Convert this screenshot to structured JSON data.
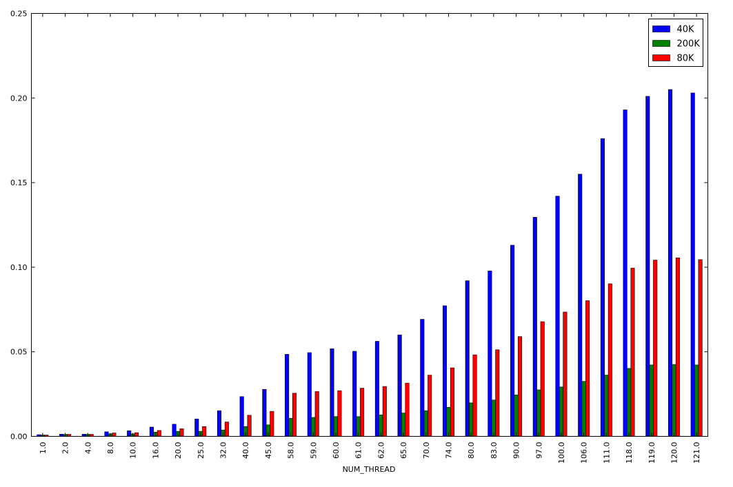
{
  "chart_data": {
    "type": "bar",
    "title": "",
    "xlabel": "NUM_THREAD",
    "ylabel": "",
    "ylim": [
      0,
      0.25
    ],
    "yticks": [
      "0.00",
      "0.05",
      "0.10",
      "0.15",
      "0.20",
      "0.25"
    ],
    "grid": false,
    "legend_position": "top-right",
    "categories": [
      "1.0",
      "2.0",
      "4.0",
      "8.0",
      "10.0",
      "16.0",
      "20.0",
      "25.0",
      "32.0",
      "40.0",
      "45.0",
      "58.0",
      "59.0",
      "60.0",
      "61.0",
      "62.0",
      "65.0",
      "70.0",
      "74.0",
      "80.0",
      "83.0",
      "90.0",
      "97.0",
      "100.0",
      "106.0",
      "111.0",
      "118.0",
      "119.0",
      "120.0",
      "121.0"
    ],
    "series": [
      {
        "name": "40K",
        "color": "#0000ff",
        "values": [
          0.001,
          0.0013,
          0.0013,
          0.0027,
          0.0033,
          0.0055,
          0.0072,
          0.0103,
          0.0152,
          0.0235,
          0.0278,
          0.0485,
          0.0495,
          0.0518,
          0.0503,
          0.0562,
          0.06,
          0.0692,
          0.0772,
          0.092,
          0.0978,
          0.113,
          0.1295,
          0.142,
          0.155,
          0.176,
          0.193,
          0.201,
          0.205,
          0.203
        ]
      },
      {
        "name": "200K",
        "color": "#008000",
        "values": [
          0.0008,
          0.0012,
          0.0012,
          0.0015,
          0.0015,
          0.0025,
          0.003,
          0.003,
          0.0038,
          0.0058,
          0.0068,
          0.0107,
          0.0112,
          0.0117,
          0.0117,
          0.0127,
          0.0138,
          0.0152,
          0.0172,
          0.0198,
          0.0215,
          0.0245,
          0.0275,
          0.0292,
          0.0325,
          0.0362,
          0.0402,
          0.0422,
          0.0425,
          0.0422
        ]
      },
      {
        "name": "80K",
        "color": "#ff0000",
        "values": [
          0.0008,
          0.0012,
          0.0012,
          0.002,
          0.0022,
          0.0035,
          0.0045,
          0.0058,
          0.0085,
          0.0125,
          0.0148,
          0.0255,
          0.0265,
          0.027,
          0.0285,
          0.0295,
          0.0315,
          0.0362,
          0.0405,
          0.0482,
          0.0512,
          0.059,
          0.0678,
          0.0735,
          0.0802,
          0.0902,
          0.0995,
          0.1042,
          0.1055,
          0.1045
        ]
      }
    ]
  }
}
